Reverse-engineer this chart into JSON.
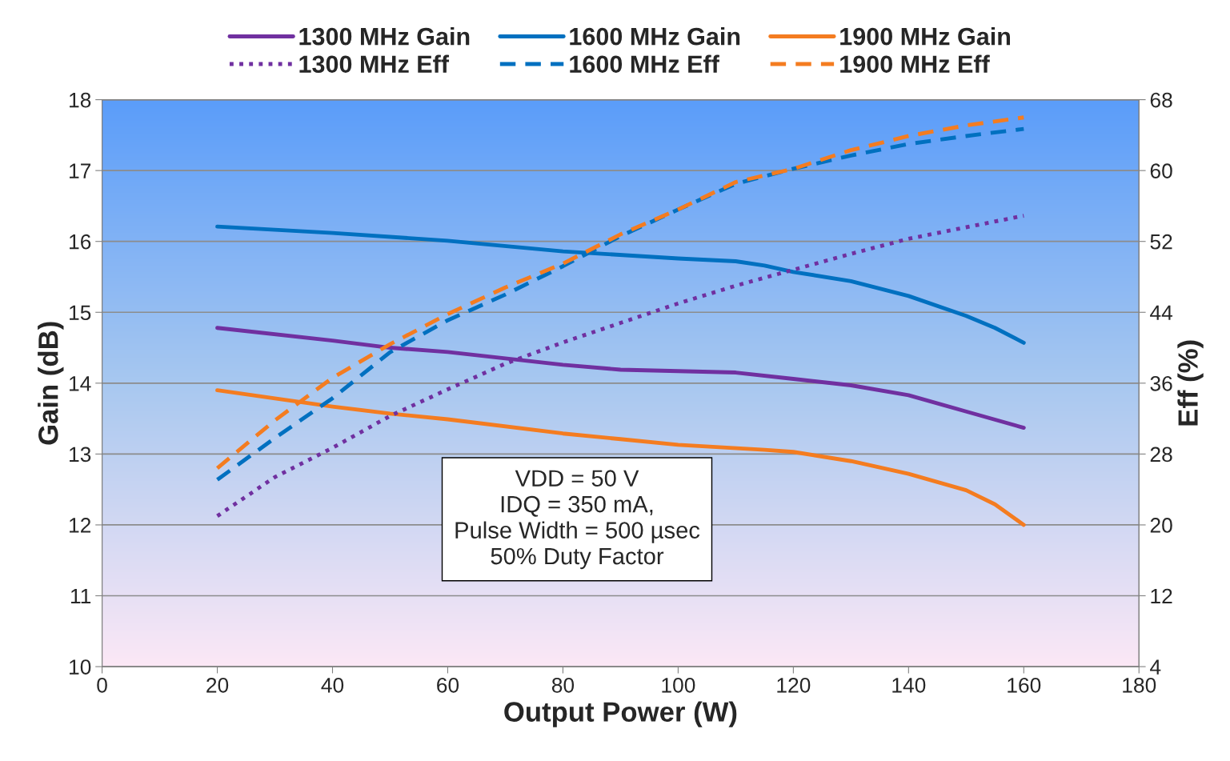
{
  "chart_data": {
    "type": "line",
    "xlabel": "Output Power (W)",
    "ylabel": "Gain (dB)",
    "y2label": "Eff (%)",
    "xlim": [
      0,
      180
    ],
    "xticks": [
      0,
      20,
      40,
      60,
      80,
      100,
      120,
      140,
      160,
      180
    ],
    "ylim": [
      10,
      18
    ],
    "yticks": [
      10,
      11,
      12,
      13,
      14,
      15,
      16,
      17,
      18
    ],
    "y2lim": [
      4,
      68
    ],
    "y2ticks": [
      4,
      12,
      20,
      28,
      36,
      44,
      52,
      60,
      68
    ],
    "grid": "y",
    "legend": "top",
    "marker": "none",
    "annotations": [
      "VDD = 50 V\nIDQ = 350 mA,\nPulse Width = 500 µsec\n50% Duty Factor"
    ],
    "series": [
      {
        "name": "1300 MHz Gain",
        "color": "#7030a0",
        "line_style": "solid",
        "x": [
          20,
          40,
          50,
          60,
          80,
          90,
          100,
          110,
          120,
          130,
          140,
          150,
          160
        ],
        "values": [
          14.78,
          14.6,
          14.5,
          14.44,
          14.26,
          14.19,
          14.17,
          14.15,
          14.06,
          13.97,
          13.83,
          13.6,
          13.37
        ]
      },
      {
        "name": "1300 MHz Eff",
        "color": "#7030a0",
        "line_style": "dotted",
        "axis": "y2",
        "x": [
          20,
          30,
          40,
          50,
          60,
          70,
          80,
          90,
          100,
          110,
          120,
          130,
          140,
          150,
          160
        ],
        "values": [
          21.0,
          25.4,
          28.7,
          32.3,
          35.3,
          38.2,
          40.6,
          42.8,
          45.0,
          47.0,
          48.8,
          50.6,
          52.3,
          53.6,
          54.9
        ]
      },
      {
        "name": "1600 MHz Gain",
        "color": "#0070c0",
        "line_style": "solid",
        "x": [
          20,
          40,
          60,
          80,
          100,
          110,
          115,
          120,
          130,
          140,
          150,
          155,
          160
        ],
        "values": [
          16.21,
          16.12,
          16.01,
          15.86,
          15.76,
          15.72,
          15.66,
          15.57,
          15.44,
          15.23,
          14.95,
          14.78,
          14.57
        ]
      },
      {
        "name": "1600 MHz Eff",
        "color": "#0070c0",
        "line_style": "dashed",
        "axis": "y2",
        "x": [
          20,
          30,
          40,
          50,
          60,
          70,
          80,
          90,
          100,
          110,
          120,
          130,
          140,
          150,
          160
        ],
        "values": [
          25.1,
          29.8,
          34.3,
          39.5,
          43.1,
          46.0,
          49.2,
          52.6,
          55.6,
          58.5,
          60.2,
          61.7,
          63.0,
          63.9,
          64.7
        ]
      },
      {
        "name": "1900 MHz Gain",
        "color": "#f47c20",
        "line_style": "solid",
        "x": [
          20,
          40,
          50,
          60,
          80,
          90,
          100,
          115,
          120,
          130,
          140,
          150,
          155,
          160
        ],
        "values": [
          13.9,
          13.67,
          13.57,
          13.49,
          13.29,
          13.21,
          13.13,
          13.06,
          13.03,
          12.9,
          12.72,
          12.49,
          12.29,
          12.0
        ]
      },
      {
        "name": "1900 MHz Eff",
        "color": "#f47c20",
        "line_style": "dashed",
        "axis": "y2",
        "x": [
          20,
          30,
          40,
          50,
          60,
          70,
          80,
          90,
          100,
          110,
          120,
          130,
          140,
          150,
          160
        ],
        "values": [
          26.4,
          31.8,
          36.6,
          40.4,
          43.8,
          46.8,
          49.5,
          52.8,
          55.6,
          58.7,
          60.2,
          62.3,
          63.9,
          65.1,
          66.0
        ]
      }
    ]
  }
}
